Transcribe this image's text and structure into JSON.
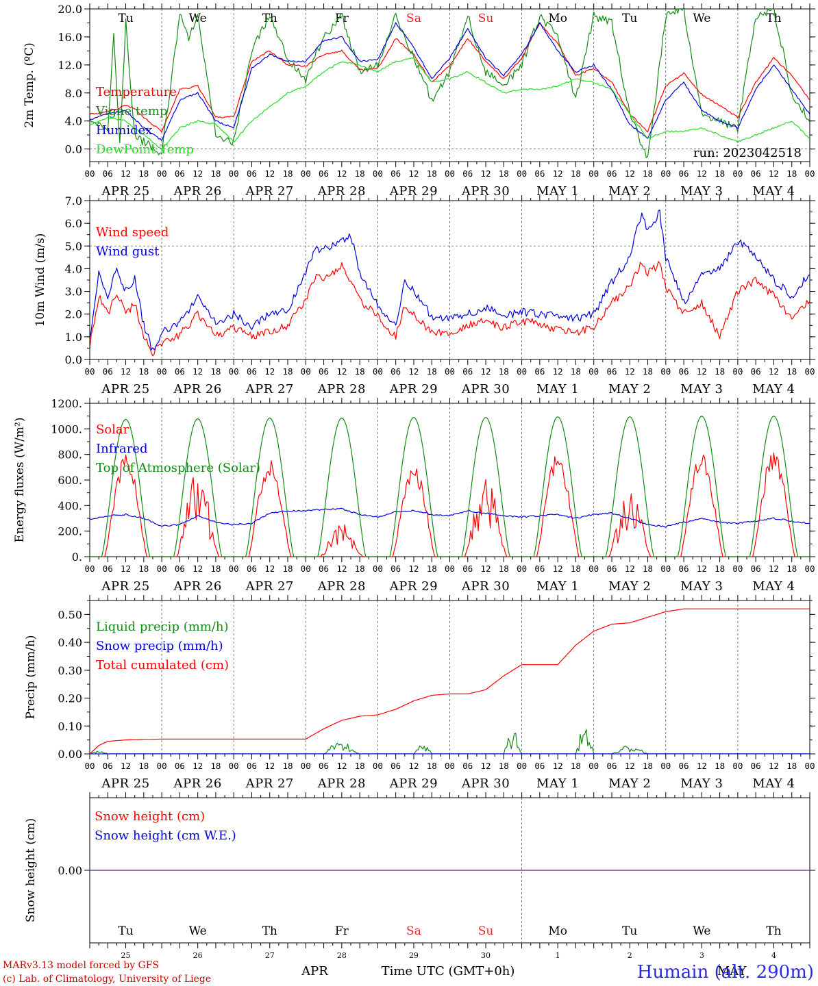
{
  "colors": {
    "red": "#ff0000",
    "blue": "#0000dd",
    "green": "#138a13",
    "lightgreen": "#22dd22",
    "purple": "#7a3a9a",
    "weekend": "#ee2222"
  },
  "days": [
    "Tu",
    "We",
    "Th",
    "Fr",
    "Sa",
    "Su",
    "Mo",
    "Tu",
    "We",
    "Th"
  ],
  "weekend_days": [
    4,
    5
  ],
  "dates": [
    "APR 25",
    "APR 26",
    "APR 27",
    "APR 28",
    "APR 29",
    "APR 30",
    "MAY  1",
    "MAY  2",
    "MAY  3",
    "MAY  4"
  ],
  "hours": [
    "00",
    "06",
    "12",
    "18"
  ],
  "bottom_day_numbers": [
    "25",
    "26",
    "27",
    "28",
    "29",
    "30",
    "1",
    "2",
    "3",
    "4"
  ],
  "bottom_months": {
    "left": "APR",
    "right": "MAY"
  },
  "xlabel": "Time UTC (GMT+0h)",
  "footer": {
    "line1": "MARv3.13 model forced by GFS",
    "line2": "(c) Lab. of Climatology, University of Liege"
  },
  "station": "Humain (alt. 290m)",
  "chart_data": [
    {
      "type": "line",
      "ylabel": "2m Temp. (ºC)",
      "ylim": [
        -1.8,
        20.0
      ],
      "yticks": [
        "20.0",
        "16.0",
        "12.0",
        "8.0",
        "4.0",
        "0.0"
      ],
      "ytick_values": [
        20,
        16,
        12,
        8,
        4,
        0
      ],
      "ref_line": 0,
      "annotation": "run: 2023042518",
      "show_days": true,
      "series": [
        {
          "name": "Temperature",
          "color": "red",
          "x": [
            0,
            6,
            12,
            15,
            18,
            24,
            30,
            36,
            42,
            48,
            54,
            60,
            66,
            72,
            78,
            84,
            90,
            96,
            102,
            108,
            114,
            120,
            126,
            132,
            138,
            144,
            150,
            156,
            162,
            168,
            174,
            180,
            186,
            192,
            198,
            204,
            210,
            216,
            222,
            228,
            234,
            240
          ],
          "y": [
            5.0,
            5.3,
            6.2,
            5.8,
            4.5,
            2.5,
            8.5,
            9.0,
            4.5,
            4.6,
            12.5,
            14.0,
            12.0,
            11.8,
            13.5,
            14.0,
            11.3,
            11.5,
            15.8,
            13.5,
            9.5,
            12.0,
            15.8,
            12.5,
            10.0,
            13.0,
            18.0,
            15.0,
            10.5,
            11.5,
            9.5,
            5.0,
            2.5,
            9.0,
            10.8,
            7.8,
            6.2,
            4.5,
            9.5,
            13.0,
            10.5,
            7.0
          ]
        },
        {
          "name": "Vigne temp",
          "color": "green",
          "x": [
            0,
            6,
            8,
            10,
            12,
            15,
            18,
            24,
            30,
            33,
            36,
            42,
            48,
            54,
            60,
            66,
            72,
            78,
            84,
            90,
            96,
            102,
            108,
            114,
            120,
            126,
            132,
            138,
            144,
            150,
            156,
            162,
            168,
            174,
            180,
            186,
            192,
            198,
            204,
            210,
            216,
            222,
            228,
            234,
            240
          ],
          "y": [
            4.0,
            3.0,
            16.0,
            1.0,
            18.0,
            2.0,
            1.0,
            -0.5,
            19.0,
            16.0,
            19.0,
            2.0,
            1.0,
            14.0,
            19.0,
            13.0,
            10.0,
            16.0,
            19.0,
            11.0,
            12.0,
            19.0,
            13.0,
            7.0,
            11.0,
            19.0,
            11.0,
            9.0,
            12.0,
            19.0,
            16.0,
            7.0,
            19.0,
            18.0,
            5.0,
            -1.5,
            19.0,
            20.0,
            5.0,
            4.0,
            3.0,
            19.0,
            20.0,
            8.0,
            4.0
          ]
        },
        {
          "name": "Humidex",
          "color": "blue",
          "x": [
            0,
            6,
            12,
            18,
            24,
            30,
            36,
            42,
            48,
            54,
            60,
            66,
            72,
            78,
            84,
            90,
            96,
            102,
            108,
            114,
            120,
            126,
            132,
            138,
            144,
            150,
            156,
            162,
            168,
            174,
            180,
            186,
            192,
            198,
            204,
            210,
            216,
            222,
            228,
            234,
            240
          ],
          "y": [
            4.2,
            5.0,
            5.5,
            3.0,
            1.2,
            7.0,
            8.0,
            4.0,
            3.0,
            11.5,
            13.5,
            12.5,
            12.5,
            15.5,
            16.0,
            12.5,
            12.8,
            18.0,
            14.5,
            10.0,
            13.0,
            17.2,
            13.0,
            10.5,
            13.5,
            18.0,
            14.0,
            11.0,
            12.0,
            8.5,
            3.5,
            1.5,
            7.0,
            9.5,
            5.5,
            4.0,
            3.0,
            8.5,
            12.0,
            8.5,
            5.0
          ]
        },
        {
          "name": "DewPoint Temp",
          "color": "lightgreen",
          "x": [
            0,
            6,
            12,
            18,
            24,
            30,
            36,
            42,
            48,
            54,
            60,
            66,
            72,
            78,
            84,
            90,
            96,
            102,
            108,
            114,
            120,
            126,
            132,
            138,
            144,
            150,
            156,
            162,
            168,
            174,
            180,
            186,
            192,
            198,
            204,
            210,
            216,
            222,
            228,
            234,
            240
          ],
          "y": [
            3.5,
            4.5,
            4.0,
            2.0,
            0.0,
            3.0,
            4.0,
            3.5,
            1.0,
            4.0,
            6.0,
            8.0,
            9.0,
            11.0,
            12.5,
            12.0,
            11.0,
            12.5,
            13.0,
            9.5,
            10.0,
            11.0,
            9.5,
            8.0,
            8.5,
            8.5,
            9.0,
            10.0,
            9.5,
            8.5,
            5.0,
            1.5,
            2.5,
            2.5,
            3.0,
            2.0,
            1.0,
            2.0,
            3.0,
            4.0,
            1.5
          ]
        }
      ]
    },
    {
      "type": "line",
      "ylabel": "10m Wind (m/s)",
      "ylim": [
        0,
        7.0
      ],
      "yticks": [
        "7.0",
        "6.0",
        "5.0",
        "4.0",
        "3.0",
        "2.0",
        "1.0",
        "0.0"
      ],
      "ytick_values": [
        7,
        6,
        5,
        4,
        3,
        2,
        1,
        0
      ],
      "ref_line": 5,
      "series": [
        {
          "name": "Wind speed",
          "color": "red",
          "x": [
            0,
            3,
            6,
            9,
            12,
            15,
            18,
            21,
            24,
            30,
            36,
            42,
            48,
            54,
            60,
            66,
            72,
            75,
            78,
            84,
            87,
            90,
            96,
            102,
            105,
            108,
            114,
            120,
            126,
            132,
            138,
            144,
            150,
            156,
            162,
            168,
            174,
            180,
            184,
            186,
            190,
            192,
            198,
            204,
            210,
            216,
            222,
            228,
            234,
            240
          ],
          "y": [
            0.6,
            2.8,
            2.0,
            3.0,
            2.0,
            2.5,
            1.0,
            0.3,
            0.7,
            1.1,
            2.0,
            1.0,
            1.4,
            1.0,
            1.2,
            1.5,
            2.6,
            3.6,
            3.6,
            4.1,
            3.5,
            2.6,
            1.9,
            1.0,
            2.4,
            2.0,
            1.2,
            1.2,
            1.5,
            1.7,
            1.4,
            1.7,
            1.6,
            1.3,
            1.2,
            1.4,
            2.5,
            3.2,
            4.3,
            3.8,
            4.2,
            3.2,
            2.0,
            2.5,
            1.0,
            3.0,
            3.5,
            2.8,
            1.8,
            2.6
          ]
        },
        {
          "name": "Wind gust",
          "color": "blue",
          "x": [
            0,
            3,
            6,
            9,
            12,
            15,
            18,
            21,
            24,
            30,
            36,
            42,
            48,
            54,
            60,
            66,
            72,
            75,
            78,
            84,
            87,
            90,
            96,
            102,
            105,
            108,
            114,
            120,
            126,
            132,
            138,
            144,
            150,
            156,
            162,
            168,
            174,
            180,
            184,
            186,
            190,
            192,
            198,
            204,
            210,
            216,
            222,
            228,
            234,
            240
          ],
          "y": [
            0.8,
            3.8,
            2.8,
            4.0,
            3.0,
            3.6,
            1.5,
            0.4,
            1.2,
            1.6,
            2.8,
            1.6,
            2.0,
            1.4,
            2.0,
            2.2,
            3.9,
            4.8,
            4.9,
            5.2,
            5.5,
            3.8,
            2.4,
            1.4,
            3.5,
            3.0,
            1.9,
            1.8,
            2.0,
            2.3,
            1.9,
            2.1,
            2.0,
            1.9,
            1.8,
            2.0,
            3.4,
            4.5,
            6.5,
            5.6,
            6.5,
            4.5,
            2.5,
            3.8,
            4.0,
            5.2,
            4.6,
            3.5,
            2.8,
            3.8
          ]
        }
      ]
    },
    {
      "type": "line",
      "ylabel": "Energy fluxes (W/m²)",
      "ylim": [
        0,
        1200
      ],
      "yticks": [
        "1200.",
        "1000.",
        "800.",
        "600.",
        "400.",
        "200.",
        "0."
      ],
      "ytick_values": [
        1200,
        1000,
        800,
        600,
        400,
        200,
        0
      ],
      "series": [
        {
          "name": "Solar",
          "color": "red",
          "day_peaks": [
            820,
            680,
            780,
            260,
            740,
            620,
            810,
            520,
            820,
            850
          ]
        },
        {
          "name": "Infrared",
          "color": "blue",
          "x": [
            0,
            6,
            12,
            18,
            24,
            30,
            36,
            42,
            48,
            54,
            60,
            66,
            72,
            78,
            84,
            90,
            96,
            102,
            108,
            114,
            120,
            126,
            132,
            138,
            144,
            150,
            156,
            162,
            168,
            174,
            180,
            186,
            192,
            198,
            204,
            210,
            216,
            222,
            228,
            234,
            240
          ],
          "y": [
            290,
            320,
            330,
            300,
            240,
            250,
            320,
            270,
            250,
            260,
            340,
            360,
            360,
            370,
            375,
            330,
            310,
            350,
            360,
            330,
            320,
            360,
            340,
            320,
            310,
            320,
            330,
            300,
            330,
            340,
            300,
            250,
            235,
            270,
            300,
            270,
            260,
            280,
            300,
            280,
            260
          ]
        },
        {
          "name": "Top of Atmosphere (Solar)",
          "color": "green",
          "day_peaks": [
            1075,
            1080,
            1085,
            1085,
            1090,
            1090,
            1095,
            1095,
            1100,
            1100
          ]
        }
      ]
    },
    {
      "type": "line",
      "ylabel": "Precip (mm/h)",
      "ylim": [
        0,
        0.55
      ],
      "yticks": [
        "0.50",
        "0.40",
        "0.30",
        "0.20",
        "0.10",
        "0.00"
      ],
      "ytick_values": [
        0.5,
        0.4,
        0.3,
        0.2,
        0.1,
        0
      ],
      "series": [
        {
          "name": "Liquid precip (mm/h)",
          "color": "green",
          "bursts": [
            [
              0,
              6,
              0.01
            ],
            [
              78,
              90,
              0.05
            ],
            [
              108,
              114,
              0.04
            ],
            [
              138,
              144,
              0.09
            ],
            [
              162,
              168,
              0.1
            ],
            [
              174,
              186,
              0.03
            ]
          ]
        },
        {
          "name": "Snow precip (mm/h)",
          "color": "blue",
          "bursts": []
        },
        {
          "name": "Total cumulated (cm)",
          "color": "red",
          "x": [
            0,
            3,
            6,
            12,
            18,
            24,
            48,
            72,
            78,
            84,
            90,
            96,
            102,
            108,
            114,
            120,
            126,
            132,
            138,
            144,
            150,
            156,
            162,
            168,
            174,
            180,
            186,
            192,
            198,
            204,
            210,
            216,
            222,
            228,
            234,
            240
          ],
          "y": [
            0.0,
            0.03,
            0.045,
            0.05,
            0.052,
            0.053,
            0.053,
            0.053,
            0.09,
            0.12,
            0.135,
            0.14,
            0.16,
            0.19,
            0.21,
            0.215,
            0.215,
            0.23,
            0.28,
            0.32,
            0.32,
            0.32,
            0.39,
            0.44,
            0.465,
            0.47,
            0.49,
            0.51,
            0.52,
            0.52,
            0.52,
            0.52,
            0.52,
            0.52,
            0.52,
            0.52
          ]
        }
      ]
    },
    {
      "type": "line",
      "ylabel": "Snow height (cm)",
      "ylim": [
        -1,
        1
      ],
      "yticks": [
        "0.00"
      ],
      "ytick_values": [
        0
      ],
      "series": [
        {
          "name": "Snow height (cm)",
          "color": "red",
          "x": [
            0,
            240
          ],
          "y": [
            0,
            0
          ]
        },
        {
          "name": "Snow height (cm W.E.)",
          "color": "blue",
          "x": [
            0,
            240
          ],
          "y": [
            0,
            0
          ]
        }
      ]
    }
  ]
}
